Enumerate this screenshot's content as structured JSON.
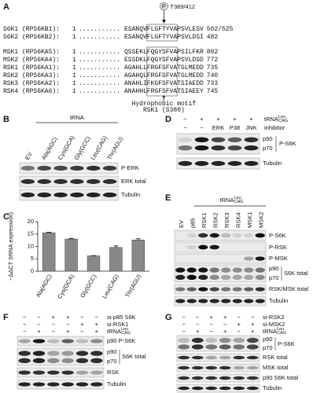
{
  "panel_A": {
    "label": "A",
    "phospho": "P",
    "site": "T389/412",
    "motif": "Hydrophobic motif",
    "motif_site": "RSK1 (S380)",
    "rows": [
      {
        "name": "S6K1 (RPS6KB1):",
        "start": "1",
        "dots": "...........",
        "seq": "ESANQVFLGFTYVAPSVLESV",
        "end": "502/525"
      },
      {
        "name": "S6K2 (RPS6KB2):",
        "start": "1",
        "dots": "...........",
        "seq": "ESANQVFLGFTYVAPSVLDSI",
        "end": "482"
      },
      {
        "name": "MSK1 (RPS6KA5):",
        "start": "1",
        "dots": "...........",
        "seq": "QSSEKLFQGYSFVAPSILFKR",
        "end": "802"
      },
      {
        "name": "MSK2 (RPS6KA4):",
        "start": "1",
        "dots": "...........",
        "seq": "ESSDKLFQGYSFVAPSVLDSD",
        "end": "772"
      },
      {
        "name": "RSK1 (RPS6KA1):",
        "start": "1",
        "dots": "...........",
        "seq": "AGAHLLFRGFSFVATGLMEDD",
        "end": "735"
      },
      {
        "name": "RSK2 (RPS6KA3):",
        "start": "1",
        "dots": "...........",
        "seq": "AGAHQLFRGFSFVATGLMEDD",
        "end": "740"
      },
      {
        "name": "RSK3 (RPS6KA2):",
        "start": "1",
        "dots": "...........",
        "seq": "ANAHLIFKGFSFVATSIAEDD",
        "end": "733"
      },
      {
        "name": "RSK4 (RPS6KA6):",
        "start": "1",
        "dots": "...........",
        "seq": "ANAHHLFRGFSFVATSIAEEY",
        "end": "745"
      }
    ]
  },
  "panel_B": {
    "label": "B",
    "group": "tRNA",
    "lanes": [
      "EV",
      "Ala(AGC)",
      "Cys(GCA)",
      "Gly(GCC)",
      "Leu(CAG)",
      "Thr(AGU)"
    ],
    "blot_labels": [
      "P-ERK",
      "ERK total",
      "Tubulin"
    ]
  },
  "panel_D": {
    "label": "D",
    "conditions": [
      {
        "label": {
          "base": "tRNA",
          "sup": "Leu",
          "sub": "CAG"
        },
        "signs": [
          "−",
          "+",
          "+",
          "+",
          "+"
        ]
      },
      {
        "label": "inhibitor",
        "signs": [
          "−",
          "−",
          "ERK",
          "P38",
          "JNK"
        ]
      }
    ],
    "blot_labels": [
      "p90",
      "p70",
      "P-S6K",
      "Tubulin"
    ]
  },
  "chart_data": {
    "type": "bar",
    "label": "C",
    "ylabel": "−ΔΔCT (tRNA expression)",
    "categories": [
      "Ala(AGC)",
      "Cys(GCA)",
      "Gly(GCC)",
      "Leu(CAG)",
      "Thr(AGU)"
    ],
    "values": [
      15.5,
      13.0,
      6.2,
      9.6,
      12.6
    ],
    "errors": [
      0.2,
      0.2,
      0.1,
      0.6,
      0.5
    ],
    "color": "#888888",
    "ylim": [
      0,
      20
    ],
    "yticks": [
      0,
      5,
      10,
      15,
      20
    ]
  },
  "panel_E": {
    "label": "E",
    "group": {
      "base": "tRNA",
      "sup": "Leu",
      "sub": "CAG"
    },
    "lanes": [
      "EV",
      "p85",
      "RSK1",
      "RSK2",
      "RSK3",
      "RSK4",
      "MSK1",
      "MSK2"
    ],
    "blot_labels": [
      "P-S6K",
      "P-RSK",
      "P-MSK",
      "p90",
      "p70",
      "S6K total",
      "RSK/MSK total",
      "Tubulin"
    ]
  },
  "panel_F": {
    "label": "F",
    "conditions": [
      {
        "label": "si-p85 S6K",
        "signs": [
          "−",
          "−",
          "+",
          "+",
          "−",
          "−"
        ]
      },
      {
        "label": "si-RSK1",
        "signs": [
          "−",
          "−",
          "−",
          "−",
          "+",
          "+"
        ]
      },
      {
        "label": {
          "base": "tRNA",
          "sup": "Leu",
          "sub": "CAG"
        },
        "signs": [
          "−",
          "+",
          "−",
          "+",
          "−",
          "+"
        ]
      }
    ],
    "blot_labels": [
      "p90 P-S6K",
      "p90",
      "p70",
      "S6K total",
      "RSK",
      "Tubulin"
    ]
  },
  "panel_G": {
    "label": "G",
    "conditions": [
      {
        "label": "si-RSK2",
        "signs": [
          "−",
          "−",
          "+",
          "+",
          "−",
          "−"
        ]
      },
      {
        "label": "si-MSK2",
        "signs": [
          "−",
          "−",
          "−",
          "−",
          "+",
          "+"
        ]
      },
      {
        "label": {
          "base": "tRNA",
          "sup": "Leu",
          "sub": "CAG"
        },
        "signs": [
          "−",
          "+",
          "−",
          "+",
          "−",
          "+"
        ]
      }
    ],
    "blot_labels": [
      "p90",
      "p70",
      "P-S6K",
      "RSK total",
      "MSK total",
      "p90 S6K total",
      "Tubulin"
    ]
  }
}
